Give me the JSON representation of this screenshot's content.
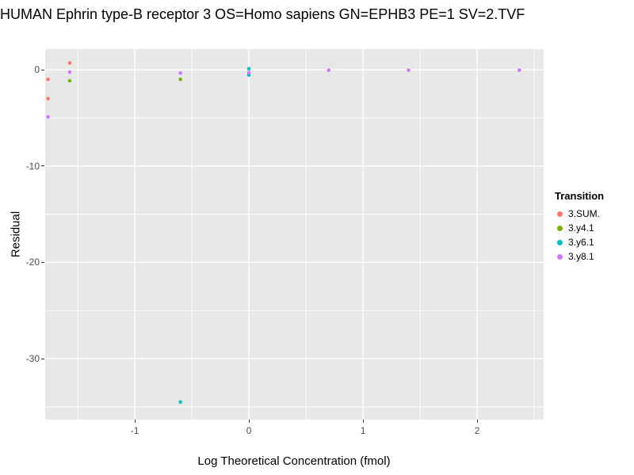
{
  "chart_data": {
    "type": "scatter",
    "title": "HUMAN Ephrin type-B receptor 3 OS=Homo sapiens GN=EPHB3 PE=1 SV=2.TVF",
    "xlabel": "Log Theoretical Concentration (fmol)",
    "ylabel": "Residual",
    "legend_title": "Transition",
    "xlim": [
      -1.785,
      2.583
    ],
    "ylim": [
      -36.32,
      2.14
    ],
    "x_ticks": [
      -1,
      0,
      1,
      2
    ],
    "y_ticks": [
      0,
      -10,
      -20,
      -30
    ],
    "x_minor_ticks": [
      -1.5,
      -0.5,
      0.5,
      1.5,
      2.5
    ],
    "y_minor_ticks": [
      -5,
      -15,
      -25,
      -35
    ],
    "grid": true,
    "legend_position": "right",
    "panel_background": "#E8E8E8",
    "gridline_color": "#FFFFFF",
    "series": [
      {
        "name": "3.SUM.",
        "color": "#F8766D",
        "points": [
          [
            -1.76,
            -1.0
          ],
          [
            -1.76,
            -3.0
          ],
          [
            -1.57,
            0.7
          ]
        ]
      },
      {
        "name": "3.y4.1",
        "color": "#7CAE00",
        "points": [
          [
            -1.57,
            -1.15
          ],
          [
            -0.6,
            -1.0
          ]
        ]
      },
      {
        "name": "3.y6.1",
        "color": "#00BFC4",
        "points": [
          [
            -0.6,
            -34.5
          ],
          [
            0.0,
            0.1
          ],
          [
            0.0,
            -0.55
          ]
        ]
      },
      {
        "name": "3.y8.1",
        "color": "#C77CFF",
        "points": [
          [
            -1.76,
            -4.9
          ],
          [
            -1.57,
            -0.25
          ],
          [
            -0.6,
            -0.35
          ],
          [
            0.0,
            -0.3
          ],
          [
            0.7,
            -0.05
          ],
          [
            1.4,
            -0.05
          ],
          [
            2.37,
            -0.05
          ]
        ]
      }
    ]
  }
}
